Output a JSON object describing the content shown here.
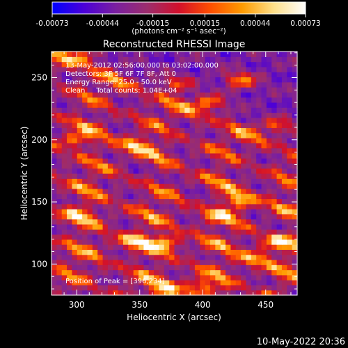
{
  "timestamp": "10-May-2022 20:36",
  "colorbar": {
    "tick_labels": [
      "-0.00073",
      "-0.00044",
      "-0.00015",
      "0.00015",
      "0.00044",
      "0.00073"
    ],
    "unit_label": "(photons cm⁻² s⁻¹ asec⁻²)",
    "range": [
      -0.00073,
      0.00073
    ],
    "colormap": [
      "#0000ff",
      "#4b00d8",
      "#7a1fa0",
      "#9c2d6d",
      "#d2102b",
      "#ff4f00",
      "#ff9b00",
      "#ffe08a",
      "#ffffff"
    ]
  },
  "chart_data": {
    "type": "heatmap",
    "title": "Reconstructed RHESSI Image",
    "xlabel": "Heliocentric X (arcsec)",
    "ylabel": "Heliocentric Y (arcsec)",
    "xlim": [
      280,
      475
    ],
    "ylim": [
      75,
      271
    ],
    "x_ticks": [
      300,
      350,
      400,
      450
    ],
    "y_ticks": [
      100,
      150,
      200,
      250
    ],
    "grid": false,
    "annotations": {
      "time_range": "13-May-2012 02:56:00.000 to 03:02:00.000",
      "detectors": "Detectors: 3F 5F 6F 7F 8F, Att 0",
      "energy": "Energy Range: 25.0 - 50.0 keV",
      "clean": "Clean     Total counts: 1.04E+04",
      "peak": "Position of Peak = [396,234]"
    },
    "peak_position": [
      396,
      234
    ],
    "stripe_bands": [
      {
        "y_at_x280": 270,
        "slope": -0.42,
        "strength": 0.9
      },
      {
        "y_at_x280": 247,
        "slope": -0.42,
        "strength": 0.75
      },
      {
        "y_at_x280": 222,
        "slope": -0.42,
        "strength": 0.95
      },
      {
        "y_at_x280": 196,
        "slope": -0.42,
        "strength": 0.8
      },
      {
        "y_at_x280": 172,
        "slope": -0.42,
        "strength": 0.95
      },
      {
        "y_at_x280": 147,
        "slope": -0.42,
        "strength": 0.9
      },
      {
        "y_at_x280": 122,
        "slope": -0.42,
        "strength": 0.95
      },
      {
        "y_at_x280": 98,
        "slope": -0.42,
        "strength": 0.85
      },
      {
        "y_at_x280": 73,
        "slope": -0.42,
        "strength": 0.7
      }
    ],
    "hot_spots": [
      {
        "x": 300,
        "y": 266,
        "v": 0.95
      },
      {
        "x": 405,
        "y": 230,
        "v": 0.9
      },
      {
        "x": 430,
        "y": 248,
        "v": 0.95
      },
      {
        "x": 380,
        "y": 246,
        "v": 0.7
      },
      {
        "x": 298,
        "y": 200,
        "v": 0.8
      },
      {
        "x": 345,
        "y": 196,
        "v": 0.95
      },
      {
        "x": 430,
        "y": 152,
        "v": 1.0
      },
      {
        "x": 412,
        "y": 140,
        "v": 0.8
      },
      {
        "x": 300,
        "y": 140,
        "v": 0.7
      },
      {
        "x": 345,
        "y": 119,
        "v": 0.95
      },
      {
        "x": 370,
        "y": 117,
        "v": 0.9
      },
      {
        "x": 460,
        "y": 118,
        "v": 1.0
      },
      {
        "x": 440,
        "y": 105,
        "v": 0.85
      },
      {
        "x": 372,
        "y": 80,
        "v": 0.95
      },
      {
        "x": 400,
        "y": 82,
        "v": 0.8
      },
      {
        "x": 460,
        "y": 212,
        "v": 0.75
      }
    ]
  }
}
